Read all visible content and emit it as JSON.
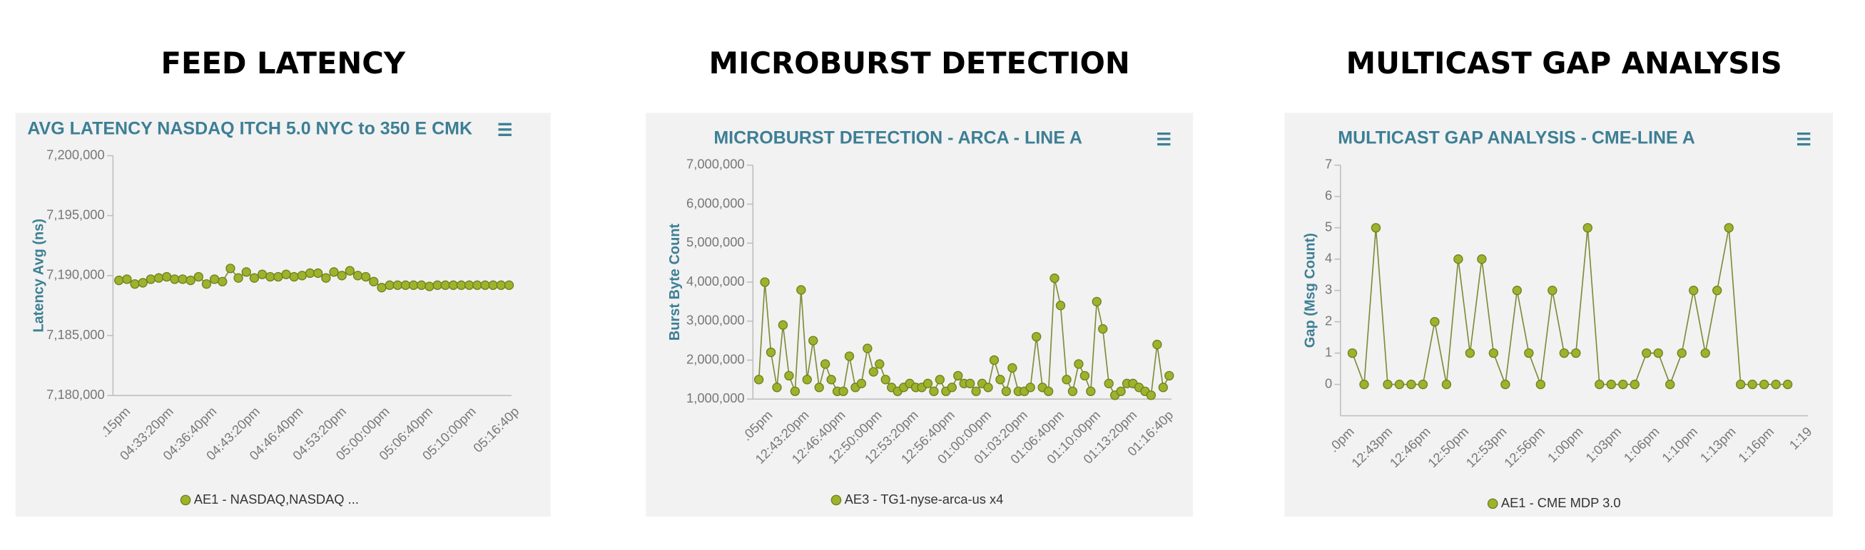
{
  "chart_data": [
    {
      "type": "line",
      "heading": "FEED LATENCY",
      "title": "AVG LATENCY NASDAQ ITCH 5.0 NYC to 350 E CMK",
      "y_label": "Latency Avg (ns)",
      "x_labels": [
        ".15pm",
        "04:33:20pm",
        "04:36:40pm",
        "04:43:20pm",
        "04:46:40pm",
        "04:53:20pm",
        "05:00:00pm",
        "05:06:40pm",
        "05:10:00pm",
        "05:16:40p"
      ],
      "ylim": [
        7180000,
        7200000
      ],
      "yticks": [
        {
          "value": 7180000,
          "label": "7,180,000"
        },
        {
          "value": 7185000,
          "label": "7,185,000"
        },
        {
          "value": 7190000,
          "label": "7,190,000"
        },
        {
          "value": 7195000,
          "label": "7,195,000"
        },
        {
          "value": 7200000,
          "label": "7,200,000"
        }
      ],
      "series": [
        {
          "name": "AE1 - NASDAQ,NASDAQ ...",
          "color": "#9cb32b",
          "values": [
            7189600,
            7189700,
            7189300,
            7189400,
            7189700,
            7189800,
            7189900,
            7189700,
            7189700,
            7189600,
            7189900,
            7189300,
            7189700,
            7189500,
            7190600,
            7189800,
            7190300,
            7189800,
            7190100,
            7189900,
            7189900,
            7190100,
            7189900,
            7190000,
            7190200,
            7190200,
            7189800,
            7190300,
            7190000,
            7190400,
            7190000,
            7189900,
            7189500,
            7189000,
            7189200,
            7189200,
            7189200,
            7189200,
            7189200,
            7189100,
            7189200,
            7189200,
            7189200,
            7189200,
            7189200,
            7189200,
            7189200,
            7189200,
            7189200,
            7189200
          ]
        }
      ]
    },
    {
      "type": "line",
      "heading": "MICROBURST DETECTION",
      "title": "MICROBURST DETECTION - ARCA - LINE A",
      "y_label": "Burst Byte Count",
      "x_labels": [
        ".05pm",
        "12:43:20pm",
        "12:46:40pm",
        "12:50:00pm",
        "12:53:20pm",
        "12:56:40pm",
        "01:00:00pm",
        "01:03:20pm",
        "01:06:40pm",
        "01:10:00pm",
        "01:13:20pm",
        "01:16:40p"
      ],
      "ylim": [
        1000000,
        7000000
      ],
      "yticks": [
        {
          "value": 1000000,
          "label": "1,000,000"
        },
        {
          "value": 2000000,
          "label": "2,000,000"
        },
        {
          "value": 3000000,
          "label": "3,000,000"
        },
        {
          "value": 4000000,
          "label": "4,000,000"
        },
        {
          "value": 5000000,
          "label": "5,000,000"
        },
        {
          "value": 6000000,
          "label": "6,000,000"
        },
        {
          "value": 7000000,
          "label": "7,000,000"
        }
      ],
      "series": [
        {
          "name": "AE3 - TG1-nyse-arca-us x4",
          "color": "#9cb32b",
          "values": [
            1500000,
            4000000,
            2200000,
            1300000,
            2900000,
            1600000,
            1200000,
            3800000,
            1500000,
            2500000,
            1300000,
            1900000,
            1500000,
            1200000,
            1200000,
            2100000,
            1300000,
            1400000,
            2300000,
            1700000,
            1900000,
            1500000,
            1300000,
            1200000,
            1300000,
            1400000,
            1300000,
            1300000,
            1400000,
            1200000,
            1500000,
            1200000,
            1300000,
            1600000,
            1400000,
            1400000,
            1200000,
            1400000,
            1300000,
            2000000,
            1500000,
            1200000,
            1800000,
            1200000,
            1200000,
            1300000,
            2600000,
            1300000,
            1200000,
            4100000,
            3400000,
            1500000,
            1200000,
            1900000,
            1600000,
            1200000,
            3500000,
            2800000,
            1400000,
            1100000,
            1200000,
            1400000,
            1400000,
            1300000,
            1200000,
            1100000,
            2400000,
            1300000,
            1600000
          ]
        }
      ]
    },
    {
      "type": "line",
      "heading": "MULTICAST GAP ANALYSIS",
      "title": "MULTICAST GAP ANALYSIS - CME-LINE A",
      "y_label": "Gap (Msg Count)",
      "x_labels": [
        ".0pm",
        "12:43pm",
        "12:46pm",
        "12:50pm",
        "12:53pm",
        "12:56pm",
        "1:00pm",
        "1:03pm",
        "1:06pm",
        "1:10pm",
        "1:13pm",
        "1:16pm",
        "1:19"
      ],
      "ylim": [
        -1,
        7
      ],
      "yticks": [
        0,
        1,
        2,
        3,
        4,
        5,
        6,
        7
      ],
      "series": [
        {
          "name": "AE1 - CME MDP 3.0",
          "color": "#9cb32b",
          "values": [
            1,
            0,
            5,
            0,
            0,
            0,
            0,
            2,
            0,
            4,
            1,
            4,
            1,
            0,
            3,
            1,
            0,
            3,
            1,
            1,
            5,
            0,
            0,
            0,
            0,
            1,
            1,
            0,
            1,
            3,
            1,
            3,
            5,
            0,
            0,
            0,
            0,
            0
          ]
        }
      ]
    }
  ]
}
